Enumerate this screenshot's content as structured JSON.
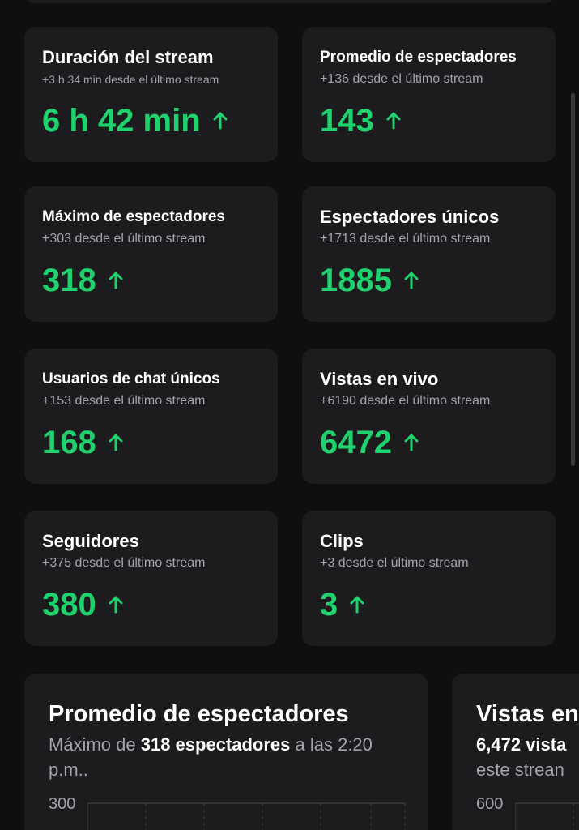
{
  "colors": {
    "background": "#0f0f10",
    "card": "#1c1c1f",
    "accent_green": "#1fd26d",
    "muted_text": "#a3a3a8"
  },
  "stats": [
    {
      "title": "Duración del stream",
      "delta": "+3 h 34 min desde el último stream",
      "value": "6 h 42 min",
      "trend_icon": "arrow-up-icon"
    },
    {
      "title": "Promedio de espectadores",
      "delta": "+136 desde el último stream",
      "value": "143",
      "trend_icon": "arrow-up-icon"
    },
    {
      "title": "Máximo de espectadores",
      "delta": "+303 desde el último stream",
      "value": "318",
      "trend_icon": "arrow-up-icon"
    },
    {
      "title": "Espectadores únicos",
      "delta": "+1713 desde el último stream",
      "value": "1885",
      "trend_icon": "arrow-up-icon"
    },
    {
      "title": "Usuarios de chat únicos",
      "delta": "+153 desde el último stream",
      "value": "168",
      "trend_icon": "arrow-up-icon"
    },
    {
      "title": "Vistas en vivo",
      "delta": "+6190 desde el último stream",
      "value": "6472",
      "trend_icon": "arrow-up-icon"
    },
    {
      "title": "Seguidores",
      "delta": "+375 desde el último stream",
      "value": "380",
      "trend_icon": "arrow-up-icon"
    },
    {
      "title": "Clips",
      "delta": "+3 desde el último stream",
      "value": "3",
      "trend_icon": "arrow-up-icon"
    }
  ],
  "charts": [
    {
      "title": "Promedio de espectadores",
      "subtitle_prefix": "Máximo de ",
      "subtitle_bold": "318 espectadores",
      "subtitle_suffix": " a las 2:20 p.m..",
      "y_tick_top": "300"
    },
    {
      "title": "Vistas en",
      "subtitle_bold": "6,472 vista",
      "subtitle_line2": "este strean",
      "y_tick_top": "600"
    }
  ]
}
